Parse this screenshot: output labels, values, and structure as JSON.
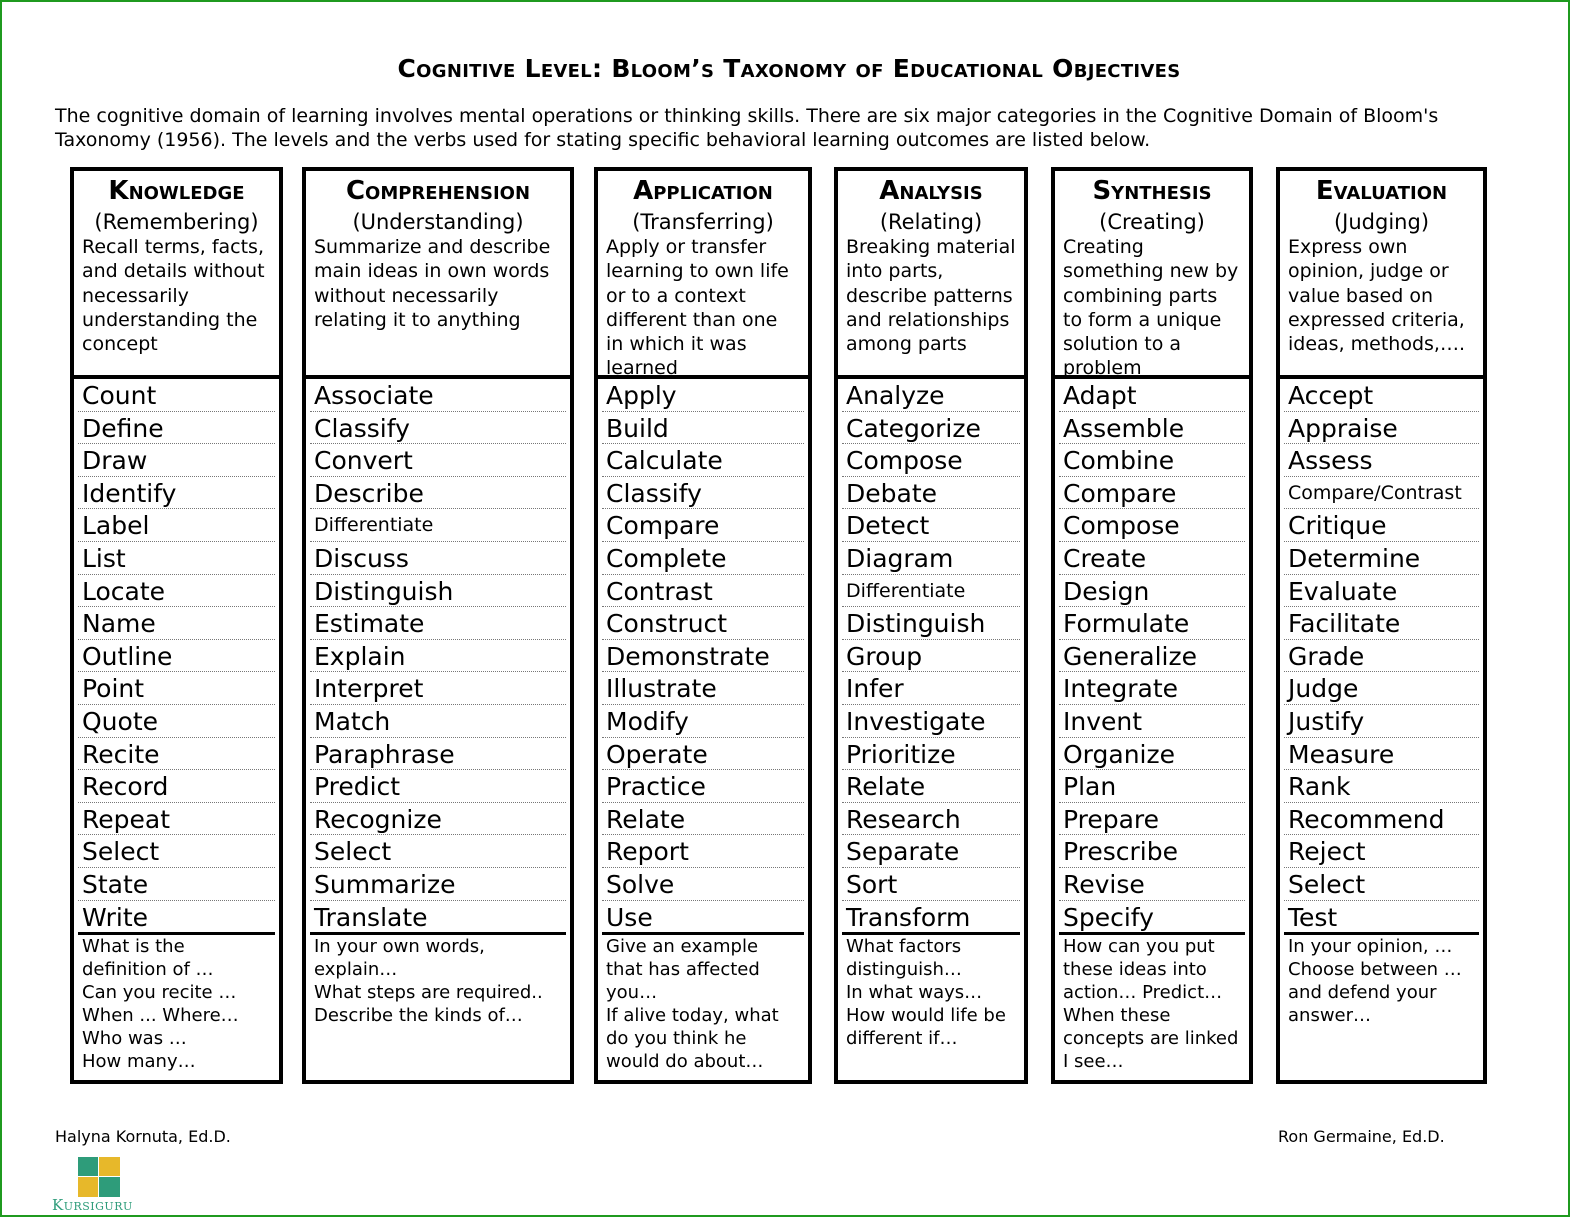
{
  "title": "Cognitive Level:  Bloom’s Taxonomy of Educational Objectives",
  "intro": "The cognitive domain of learning involves mental operations or thinking skills.  There are six major categories in the Cognitive Domain of Bloom's Taxonomy (1956).  The levels and the verbs used for stating specific behavioral learning outcomes are listed below.",
  "columns": [
    {
      "name": "Knowledge",
      "sub": "(Remembering)",
      "desc": "Recall terms, facts, and details without necessarily understanding the concept",
      "verbs": [
        "Count",
        "Define",
        "Draw",
        "Identify",
        "Label",
        "List",
        "Locate",
        "Name",
        "Outline",
        "Point",
        "Quote",
        "Recite",
        "Record",
        "Repeat",
        "Select",
        "State",
        "Write"
      ],
      "questions": [
        "What is the definition of …",
        "Can you recite …",
        "When ... Where…",
        "Who was …",
        "How many…"
      ]
    },
    {
      "name": "Comprehension",
      "sub": "(Understanding)",
      "desc": "Summarize and describe main ideas in own words without necessarily relating it to anything",
      "verbs": [
        "Associate",
        "Classify",
        "Convert",
        "Describe",
        "Differentiate",
        "Discuss",
        "Distinguish",
        "Estimate",
        "Explain",
        "Interpret",
        "Match",
        "Paraphrase",
        "Predict",
        "Recognize",
        "Select",
        "Summarize",
        "Translate"
      ],
      "questions": [
        "In your own words, explain…",
        "What steps are required..",
        "Describe the kinds of…"
      ]
    },
    {
      "name": "Application",
      "sub": "(Transferring)",
      "desc": "Apply or transfer learning to own life or to a context different than one in which it was learned",
      "verbs": [
        "Apply",
        "Build",
        "Calculate",
        "Classify",
        "Compare",
        "Complete",
        "Contrast",
        "Construct",
        "Demonstrate",
        "Illustrate",
        "Modify",
        "Operate",
        "Practice",
        "Relate",
        "Report",
        "Solve",
        "Use"
      ],
      "questions": [
        "Give an example that has affected you…",
        "If alive today, what do you think he would do about…"
      ]
    },
    {
      "name": "Analysis",
      "sub": "(Relating)",
      "desc": "Breaking material into parts, describe patterns and relationships among parts",
      "verbs": [
        "Analyze",
        "Categorize",
        "Compose",
        "Debate",
        "Detect",
        "Diagram",
        "Differentiate",
        "Distinguish",
        "Group",
        "Infer",
        "Investigate",
        "Prioritize",
        "Relate",
        "Research",
        "Separate",
        "Sort",
        "Transform"
      ],
      "questions": [
        "What factors distinguish…",
        "In what ways…",
        "How would life be different if…"
      ]
    },
    {
      "name": "Synthesis",
      "sub": "(Creating)",
      "desc": "Creating something new by combining parts to form a unique solution to a problem",
      "verbs": [
        "Adapt",
        "Assemble",
        "Combine",
        "Compare",
        "Compose",
        "Create",
        "Design",
        "Formulate",
        "Generalize",
        "Integrate",
        "Invent",
        "Organize",
        "Plan",
        "Prepare",
        "Prescribe",
        "Revise",
        "Specify"
      ],
      "questions": [
        "How can you put these ideas into action…  Predict…",
        "When these concepts are linked I see…"
      ]
    },
    {
      "name": "Evaluation",
      "sub": "(Judging)",
      "desc": "Express own opinion, judge or value based on expressed criteria, ideas, methods,….",
      "verbs": [
        "Accept",
        "Appraise",
        "Assess",
        "Compare/Contrast",
        "Critique",
        "Determine",
        "Evaluate",
        "Facilitate",
        "Grade",
        "Judge",
        "Justify",
        "Measure",
        "Rank",
        "Recommend",
        "Reject",
        "Select",
        "Test"
      ],
      "questions": [
        "In your opinion, …",
        "Choose between … and defend your answer…"
      ]
    }
  ],
  "authors": {
    "left": "Halyna Kornuta, Ed.D.",
    "right": "Ron Germaine, Ed.D."
  },
  "logo": {
    "text": "Kursiguru",
    "colors": [
      "#2e9c7a",
      "#e7b82a"
    ]
  },
  "border_color": "#1f9a1f"
}
